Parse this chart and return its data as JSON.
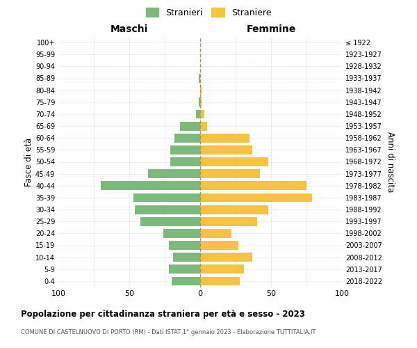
{
  "age_groups": [
    "0-4",
    "5-9",
    "10-14",
    "15-19",
    "20-24",
    "25-29",
    "30-34",
    "35-39",
    "40-44",
    "45-49",
    "50-54",
    "55-59",
    "60-64",
    "65-69",
    "70-74",
    "75-79",
    "80-84",
    "85-89",
    "90-94",
    "95-99",
    "100+"
  ],
  "birth_years": [
    "2018-2022",
    "2013-2017",
    "2008-2012",
    "2003-2007",
    "1998-2002",
    "1993-1997",
    "1988-1992",
    "1983-1987",
    "1978-1982",
    "1973-1977",
    "1968-1972",
    "1963-1967",
    "1958-1962",
    "1953-1957",
    "1948-1952",
    "1943-1947",
    "1938-1942",
    "1933-1937",
    "1928-1932",
    "1923-1927",
    "≤ 1922"
  ],
  "maschi": [
    20,
    22,
    19,
    22,
    26,
    42,
    46,
    47,
    70,
    37,
    21,
    21,
    18,
    14,
    3,
    1,
    0,
    1,
    0,
    0,
    0
  ],
  "femmine": [
    28,
    31,
    37,
    27,
    22,
    40,
    48,
    79,
    75,
    42,
    48,
    37,
    35,
    5,
    3,
    1,
    1,
    0,
    0,
    0,
    0
  ],
  "male_color": "#7db87d",
  "female_color": "#f5c242",
  "dashed_line_color": "#999966",
  "background_color": "#ffffff",
  "title": "Popolazione per cittadinanza straniera per età e sesso - 2023",
  "subtitle": "COMUNE DI CASTELNUOVO DI PORTO (RM) - Dati ISTAT 1° gennaio 2023 - Elaborazione TUTTITALIA.IT",
  "ylabel_left": "Fasce di età",
  "ylabel_right": "Anni di nascita",
  "header_left": "Maschi",
  "header_right": "Femmine",
  "legend_male": "Stranieri",
  "legend_female": "Straniere",
  "xlim": 100,
  "grid_color": "#cccccc",
  "grid_line_color": "#dddddd"
}
